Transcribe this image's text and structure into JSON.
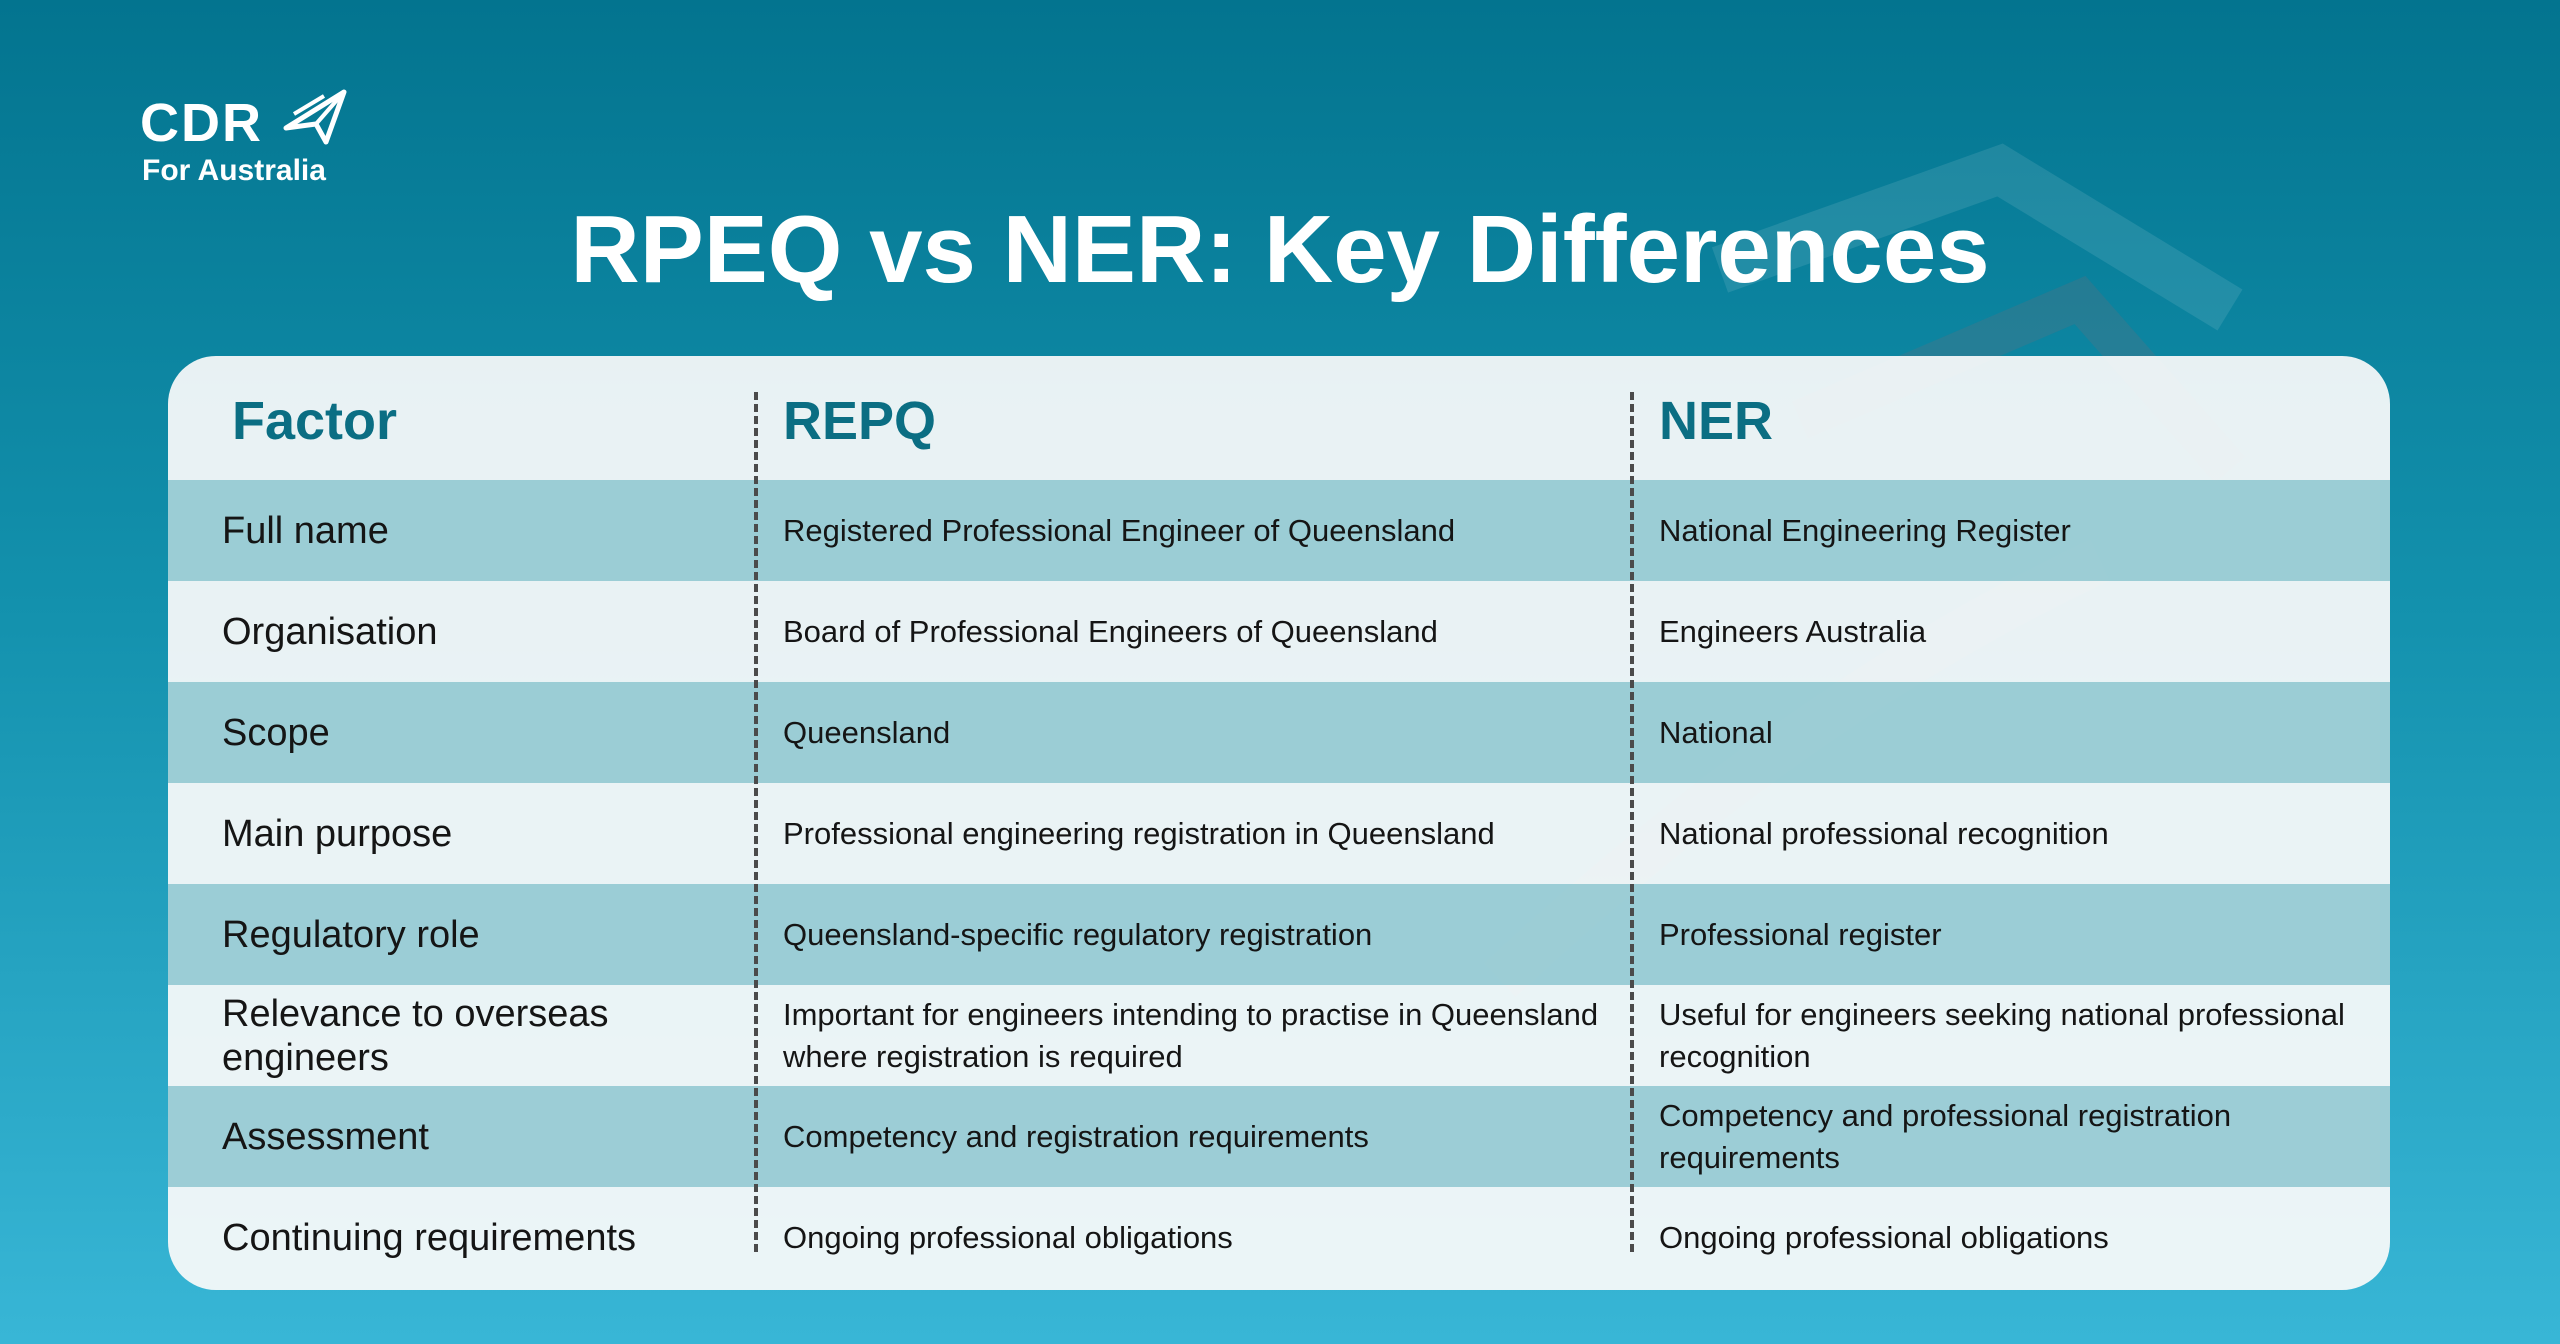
{
  "logo": {
    "brand": "CDR",
    "sub": "For Australia"
  },
  "title": "RPEQ vs NER: Key Differences",
  "table": {
    "headers": [
      "Factor",
      "REPQ",
      "NER"
    ],
    "rows": [
      {
        "factor": "Full name",
        "repq": "Registered Professional Engineer of Queensland",
        "ner": "National Engineering Register"
      },
      {
        "factor": "Organisation",
        "repq": "Board of Professional Engineers of Queensland",
        "ner": "Engineers Australia"
      },
      {
        "factor": "Scope",
        "repq": "Queensland",
        "ner": "National"
      },
      {
        "factor": "Main purpose",
        "repq": "Professional engineering registration in Queensland",
        "ner": "National professional recognition"
      },
      {
        "factor": "Regulatory role",
        "repq": "Queensland-specific regulatory registration",
        "ner": "Professional register"
      },
      {
        "factor": "Relevance to overseas engineers",
        "repq": "Important for engineers intending to practise in Queensland where registration is required",
        "ner": "Useful for engineers seeking national professional recognition"
      },
      {
        "factor": "Assessment",
        "repq": "Competency and registration requirements",
        "ner": "Competency and professional registration requirements"
      },
      {
        "factor": "Continuing requirements",
        "repq": "Ongoing professional obligations",
        "ner": "Ongoing professional obligations"
      }
    ]
  }
}
